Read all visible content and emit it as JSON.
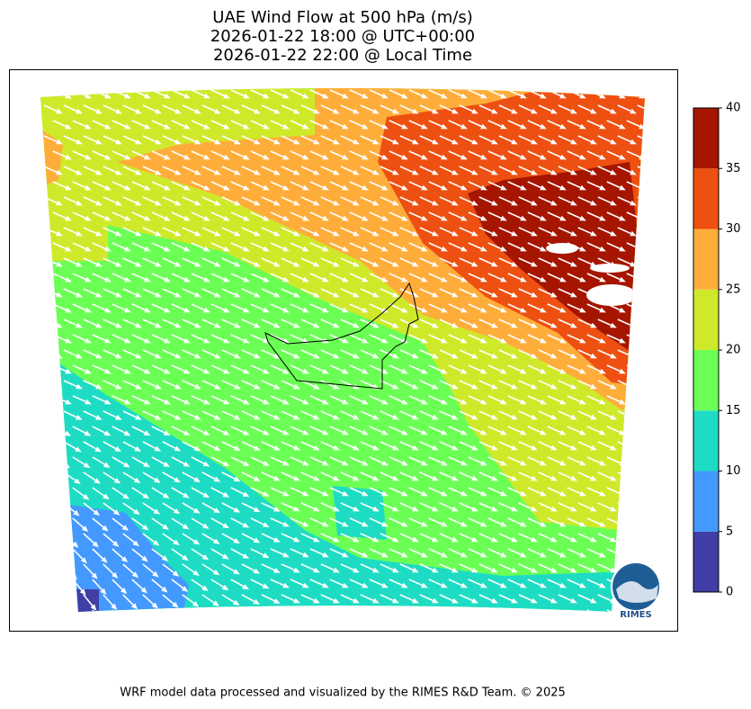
{
  "header": {
    "title_lines": [
      "UAE Wind Flow at 500 hPa (m/s)",
      "2026-01-22 18:00 @ UTC+00:00",
      "2026-01-22 22:00 @ Local Time"
    ]
  },
  "colorbar": {
    "ticks": [
      0,
      5,
      10,
      15,
      20,
      25,
      30,
      35,
      40
    ],
    "colors": [
      "#3f3fa6",
      "#4499ff",
      "#1edcc4",
      "#6bff55",
      "#cfe92a",
      "#ffad3a",
      "#ee5011",
      "#a51500"
    ]
  },
  "logo": {
    "text": "RIMES"
  },
  "footer": {
    "text": "WRF model data processed and visualized by the RIMES R&D Team. © 2025"
  }
}
